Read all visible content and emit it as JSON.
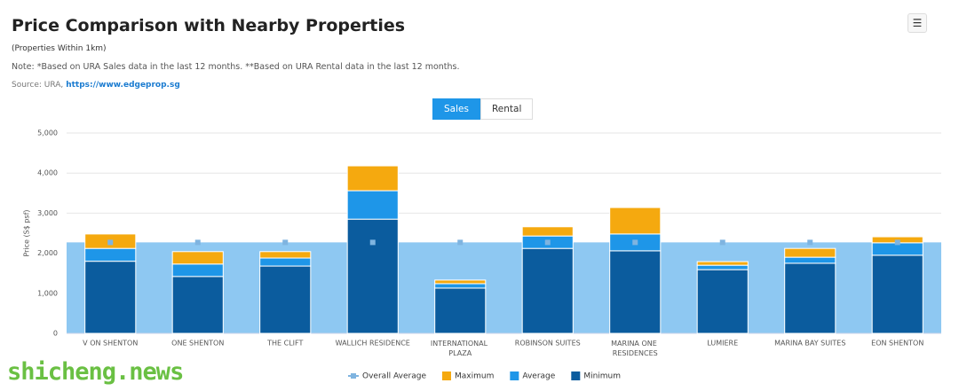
{
  "header": {
    "title": "Price Comparison with Nearby Properties",
    "subtitle": "(Properties Within 1km)",
    "note": "Note: *Based on URA Sales data in the last 12 months. **Based on URA Rental data in the last 12 months.",
    "source": "Source: URA,",
    "source_link": "https://www.edgeprop.sg",
    "menu": "☰"
  },
  "tabs": [
    "Sales",
    "Rental"
  ],
  "watermark": "shicheng.news",
  "chart_data": {
    "type": "stacked_bar",
    "ylabel": "Price (S$ psf)",
    "categories": [
      "V ON SHENTON",
      "ONE SHENTON",
      "THE CLIFT",
      "WALLICH RESIDENCE",
      "INTERNATIONAL PLAZA",
      "ROBINSON SUITES",
      "MARINA ONE RESIDENCES",
      "LUMIERE",
      "MARINA BAY SUITES",
      "EON SHENTON"
    ],
    "overall_average": {
      "name": "Overall Average",
      "color": "#8ec8f2",
      "marker_color": "#7fb4e0",
      "values": [
        2270,
        2270,
        2270,
        2270,
        2270,
        2270,
        2270,
        2270,
        2270,
        2270
      ]
    },
    "series": [
      {
        "name": "Minimum",
        "color": "#0b5c9e",
        "values": [
          1800,
          1420,
          1680,
          2850,
          1130,
          2120,
          2060,
          1590,
          1750,
          1950
        ]
      },
      {
        "name": "Average",
        "color": "#1e96e8",
        "values": [
          320,
          310,
          200,
          710,
          110,
          310,
          420,
          110,
          150,
          310
        ]
      },
      {
        "name": "Maximum",
        "color": "#f5a90f",
        "values": [
          360,
          310,
          160,
          620,
          90,
          230,
          660,
          90,
          220,
          150
        ]
      }
    ],
    "legend_order": [
      2,
      1,
      0
    ],
    "ylim": [
      0,
      5000
    ],
    "yticks": [
      0,
      {
        "value": 1000,
        "label": "1,000"
      },
      {
        "value": 2000,
        "label": "2,000"
      },
      {
        "value": 3000,
        "label": "3,000"
      },
      {
        "value": 4000,
        "label": "4,000"
      },
      {
        "value": 5000,
        "label": "5,000"
      }
    ],
    "grid": true
  }
}
